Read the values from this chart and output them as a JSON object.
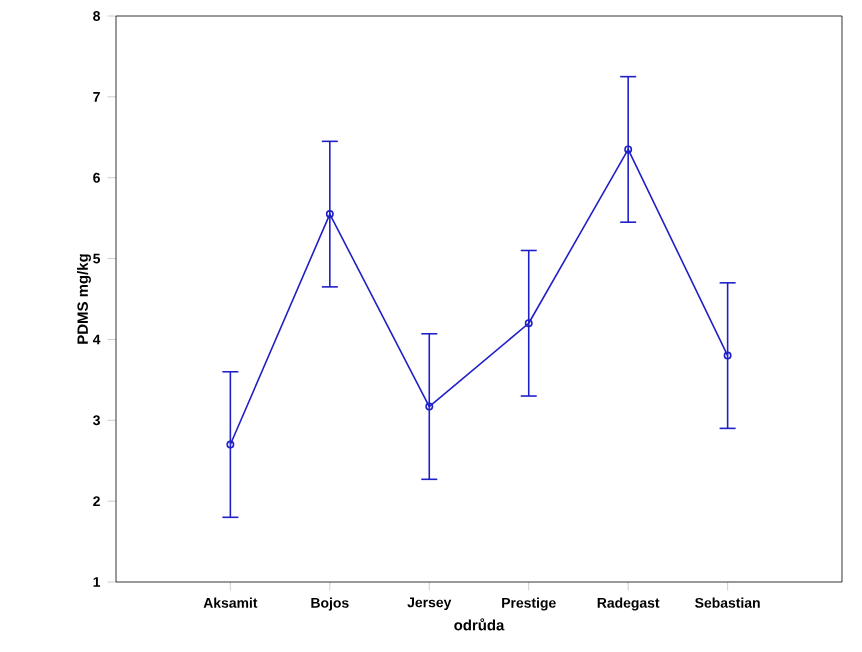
{
  "chart_data": {
    "type": "line",
    "xlabel": "odrůda",
    "ylabel": "PDMS  mg/kg",
    "categories": [
      "Aksamit",
      "Bojos",
      "Jersey",
      "Prestige",
      "Radegast",
      "Sebastian"
    ],
    "series": [
      {
        "color": "#2020c8",
        "values": [
          2.7,
          5.55,
          3.17,
          4.2,
          6.35,
          3.8
        ],
        "errors": [
          0.9,
          0.9,
          0.9,
          0.9,
          0.9,
          0.9
        ]
      }
    ],
    "ylim": [
      1,
      8
    ],
    "yticks": [
      1,
      2,
      3,
      4,
      5,
      6,
      7,
      8
    ],
    "grid": false,
    "marker": "circle",
    "line_style": "solid"
  }
}
